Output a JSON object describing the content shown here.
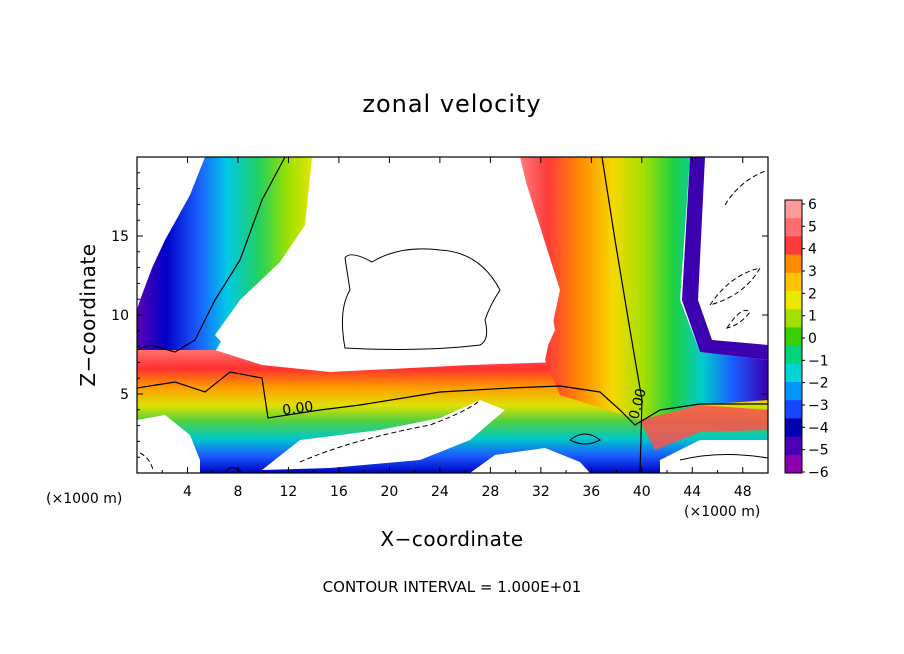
{
  "chart_data": {
    "type": "heatmap",
    "title": "zonal velocity",
    "xlabel": "X−coordinate",
    "ylabel": "Z−coordinate",
    "x_unit_left": "(×1000 m)",
    "x_unit_right": "(×1000 m)",
    "xlim": [
      0,
      50
    ],
    "ylim": [
      0,
      20
    ],
    "x_ticks": [
      "4",
      "8",
      "12",
      "16",
      "20",
      "24",
      "28",
      "32",
      "36",
      "40",
      "44",
      "48"
    ],
    "y_ticks": [
      "5",
      "10",
      "15"
    ],
    "colorbar": {
      "labels": [
        "6",
        "5",
        "4",
        "3",
        "2",
        "1",
        "0",
        "−1",
        "−2",
        "−3",
        "−4",
        "−5",
        "−6"
      ],
      "colors": [
        "#ff9a9a",
        "#ff6e6e",
        "#ff3a3a",
        "#ff8c00",
        "#ffc400",
        "#e9e900",
        "#a2e000",
        "#38d000",
        "#00d47c",
        "#00d4d4",
        "#0094ff",
        "#1646ff",
        "#0000b0",
        "#4a00b4",
        "#8c00b0"
      ]
    },
    "contour_labels": [
      "0.00",
      "0.00"
    ],
    "note": "CONTOUR INTERVAL = 1.000E+01"
  }
}
